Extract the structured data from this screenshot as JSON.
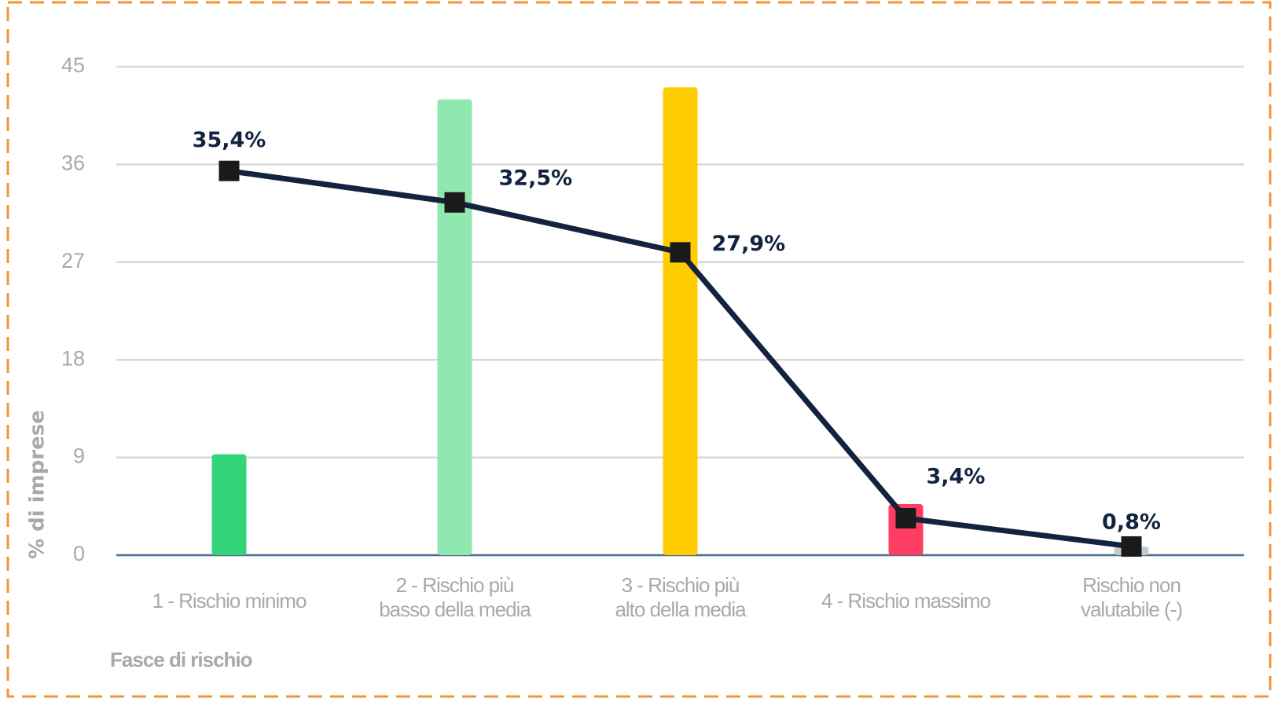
{
  "chart_data": {
    "type": "bar",
    "xlabel": "Fasce di rischio",
    "ylabel": "% di imprese",
    "categories": [
      "1 - Rischio minimo",
      "2 - Rischio più\nbasso della media",
      "3 - Rischio più\nalto della media",
      "4 - Rischio massimo",
      "Rischio non\nvalutabile (-)"
    ],
    "series": [
      {
        "type": "bar",
        "colors": [
          "#34d47a",
          "#90e8b0",
          "#ffcc00",
          "#ff3d63",
          "#c8c8c8"
        ],
        "values": [
          9.3,
          42.0,
          43.1,
          4.7,
          0.8
        ]
      },
      {
        "type": "line",
        "color": "#13233f",
        "values": [
          35.4,
          32.5,
          27.9,
          3.4,
          0.8
        ],
        "value_labels": [
          "35,4%",
          "32,5%",
          "27,9%",
          "3,4%",
          "0,8%"
        ]
      }
    ],
    "ylim": [
      0,
      45
    ],
    "yticks": [
      0,
      9,
      18,
      27,
      36,
      45
    ],
    "grid": true
  }
}
